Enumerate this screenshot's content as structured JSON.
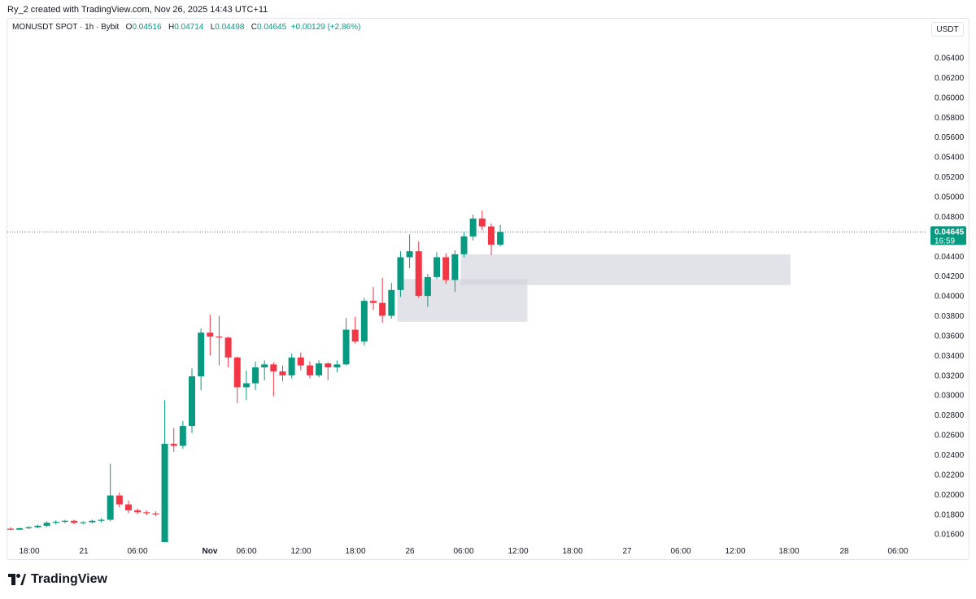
{
  "header": {
    "caption": "Ry_2 created with TradingView.com, Nov 26, 2025 14:43 UTC+11",
    "symbol": "MONUSDT SPOT · 1h · Bybit",
    "o_label": "O",
    "o_value": "0.04516",
    "h_label": "H",
    "h_value": "0.04714",
    "l_label": "L",
    "l_value": "0.04498",
    "c_label": "C",
    "c_value": "0.04645",
    "change": "+0.00129 (+2.86%)",
    "currency": "USDT"
  },
  "brand": {
    "name": "TradingView",
    "icon": "tradingview-logo-icon"
  },
  "colors": {
    "up": "#089981",
    "down": "#f23645",
    "zone": "#d1d4dc",
    "price_line": "#089981"
  },
  "chart_data": {
    "type": "candlestick",
    "ylim": [
      0.0152,
      0.0658
    ],
    "y_ticks": [
      "0.06400",
      "0.06200",
      "0.06000",
      "0.05800",
      "0.05600",
      "0.05400",
      "0.05200",
      "0.05000",
      "0.04800",
      "0.04400",
      "0.04200",
      "0.04000",
      "0.03800",
      "0.03600",
      "0.03400",
      "0.03200",
      "0.03000",
      "0.02800",
      "0.02600",
      "0.02400",
      "0.02200",
      "0.02000",
      "0.01800",
      "0.01600"
    ],
    "x_ticks": [
      "18:00",
      "21",
      "06:00",
      "Nov",
      "06:00",
      "12:00",
      "18:00",
      "26",
      "06:00",
      "12:00",
      "18:00",
      "27",
      "06:00",
      "12:00",
      "18:00",
      "28",
      "06:00"
    ],
    "last_price": {
      "value": "0.04645",
      "countdown": "16:59"
    },
    "candles": [
      [
        0.01655,
        0.0167,
        0.0164,
        0.01645
      ],
      [
        0.01645,
        0.01665,
        0.0164,
        0.0166
      ],
      [
        0.0166,
        0.0168,
        0.0165,
        0.0167
      ],
      [
        0.0167,
        0.01695,
        0.0166,
        0.01685
      ],
      [
        0.01685,
        0.0173,
        0.0167,
        0.01715
      ],
      [
        0.01715,
        0.0174,
        0.017,
        0.01725
      ],
      [
        0.01725,
        0.01745,
        0.0171,
        0.01735
      ],
      [
        0.01735,
        0.01745,
        0.017,
        0.01715
      ],
      [
        0.01715,
        0.0173,
        0.017,
        0.0172
      ],
      [
        0.0172,
        0.01745,
        0.0171,
        0.01735
      ],
      [
        0.01735,
        0.0176,
        0.0172,
        0.01745
      ],
      [
        0.01745,
        0.0231,
        0.0173,
        0.0199
      ],
      [
        0.0199,
        0.0202,
        0.0187,
        0.019
      ],
      [
        0.019,
        0.0194,
        0.0181,
        0.0184
      ],
      [
        0.0184,
        0.0186,
        0.018,
        0.0182
      ],
      [
        0.0182,
        0.0184,
        0.0179,
        0.0181
      ],
      [
        0.0181,
        0.0183,
        0.0178,
        0.018
      ],
      [
        0.0145,
        0.0295,
        0.0145,
        0.0251
      ],
      [
        0.0251,
        0.0267,
        0.0243,
        0.0249
      ],
      [
        0.0249,
        0.0274,
        0.0246,
        0.0269
      ],
      [
        0.0269,
        0.0327,
        0.0262,
        0.0319
      ],
      [
        0.0319,
        0.0367,
        0.0305,
        0.0363
      ],
      [
        0.0363,
        0.0381,
        0.034,
        0.0359
      ],
      [
        0.0359,
        0.038,
        0.033,
        0.0358
      ],
      [
        0.0358,
        0.0359,
        0.0328,
        0.0338
      ],
      [
        0.0338,
        0.0339,
        0.0292,
        0.0308
      ],
      [
        0.0308,
        0.0325,
        0.0295,
        0.0312
      ],
      [
        0.0312,
        0.0334,
        0.0305,
        0.0328
      ],
      [
        0.0328,
        0.0335,
        0.0315,
        0.0331
      ],
      [
        0.0331,
        0.0333,
        0.0299,
        0.0324
      ],
      [
        0.0324,
        0.033,
        0.0314,
        0.032
      ],
      [
        0.032,
        0.0342,
        0.0317,
        0.0338
      ],
      [
        0.0338,
        0.0343,
        0.0325,
        0.033
      ],
      [
        0.033,
        0.0334,
        0.0317,
        0.032
      ],
      [
        0.032,
        0.0335,
        0.0318,
        0.0332
      ],
      [
        0.0332,
        0.0333,
        0.0315,
        0.0328
      ],
      [
        0.0328,
        0.0335,
        0.0323,
        0.0331
      ],
      [
        0.0331,
        0.0378,
        0.033,
        0.0366
      ],
      [
        0.0366,
        0.0379,
        0.0352,
        0.0354
      ],
      [
        0.0354,
        0.0398,
        0.035,
        0.0395
      ],
      [
        0.0395,
        0.0409,
        0.0386,
        0.0393
      ],
      [
        0.0393,
        0.0418,
        0.0373,
        0.038
      ],
      [
        0.038,
        0.0413,
        0.0377,
        0.0406
      ],
      [
        0.0406,
        0.0445,
        0.0399,
        0.0439
      ],
      [
        0.0439,
        0.0462,
        0.0428,
        0.0445
      ],
      [
        0.0445,
        0.0455,
        0.0398,
        0.04
      ],
      [
        0.04,
        0.0422,
        0.0389,
        0.0419
      ],
      [
        0.0419,
        0.0444,
        0.0417,
        0.0439
      ],
      [
        0.0439,
        0.0443,
        0.0412,
        0.0416
      ],
      [
        0.0416,
        0.0446,
        0.0404,
        0.0442
      ],
      [
        0.0442,
        0.0465,
        0.0439,
        0.046
      ],
      [
        0.046,
        0.0482,
        0.0456,
        0.0478
      ],
      [
        0.0478,
        0.0486,
        0.0466,
        0.047
      ],
      [
        0.047,
        0.0473,
        0.0441,
        0.04516
      ],
      [
        0.04516,
        0.04714,
        0.04498,
        0.04645
      ]
    ],
    "zones": [
      {
        "from_candle": 50,
        "to_candle": 86,
        "top": 0.0442,
        "bottom": 0.0411
      },
      {
        "from_candle": 43,
        "to_candle": 57,
        "top": 0.0417,
        "bottom": 0.0374
      }
    ]
  }
}
